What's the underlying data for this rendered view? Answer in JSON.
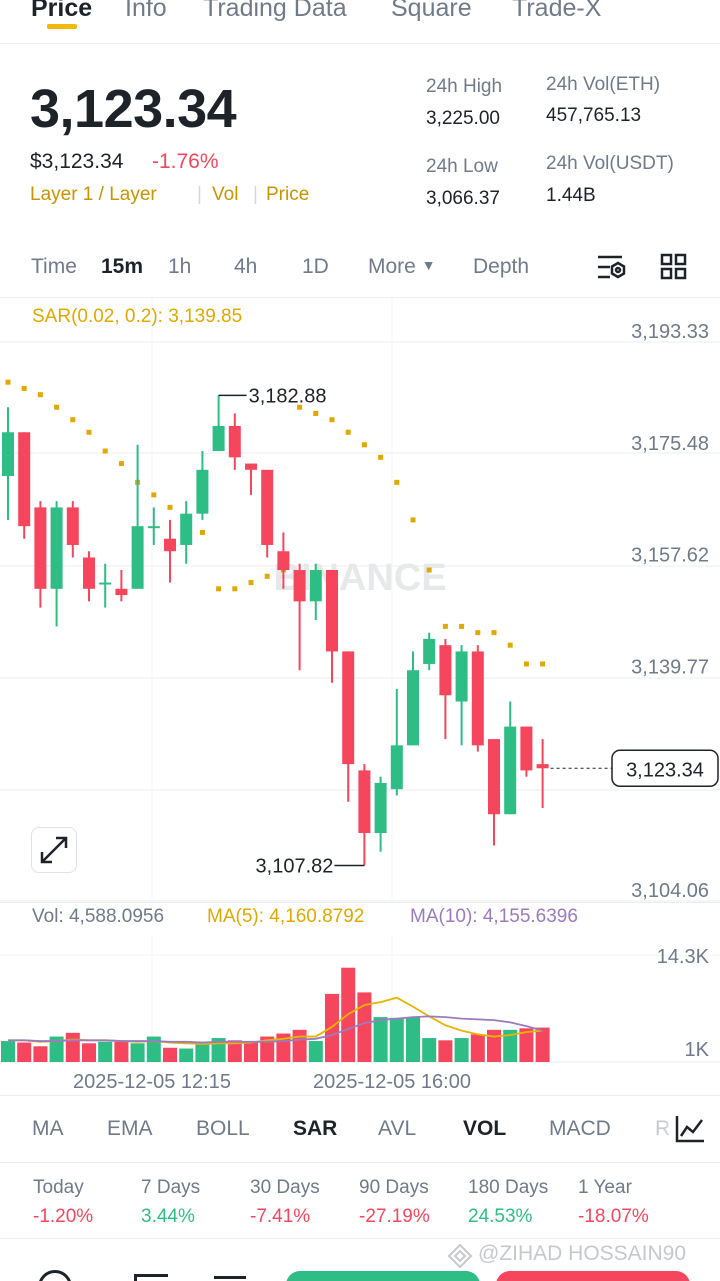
{
  "top_tabs": [
    "Price",
    "Info",
    "Trading Data",
    "Square",
    "Trade-X"
  ],
  "price": {
    "last": "3,123.34",
    "fiat": "$3,123.34",
    "change": "-1.76%"
  },
  "tags": {
    "category": "Layer 1 / Layer",
    "vol": "Vol",
    "price": "Price"
  },
  "stats": {
    "high_label": "24h High",
    "high": "3,225.00",
    "low_label": "24h Low",
    "low": "3,066.37",
    "vol_eth_label": "24h Vol(ETH)",
    "vol_eth": "457,765.13",
    "vol_usdt_label": "24h Vol(USDT)",
    "vol_usdt": "1.44B"
  },
  "intervals": {
    "time": "Time",
    "m15": "15m",
    "h1": "1h",
    "h4": "4h",
    "d1": "1D",
    "more": "More",
    "depth": "Depth"
  },
  "indicator_legend": "SAR(0.02, 0.2): 3,139.85",
  "watermark": "BINANCE",
  "price_axis": [
    "3,193.33",
    "3,175.48",
    "3,157.62",
    "3,139.77",
    "3,104.06"
  ],
  "current_price_tag": "3,123.34",
  "annotations": {
    "high": "3,182.88",
    "low": "3,107.82"
  },
  "volume": {
    "vol": "Vol: 4,588.0956",
    "ma5": "MA(5): 4,160.8792",
    "ma10": "MA(10): 4,155.6396",
    "axis_top": "14.3K",
    "axis_bottom": "1K"
  },
  "time_axis": [
    "2025-12-05 12:15",
    "2025-12-05 16:00"
  ],
  "indicator_tabs": [
    "MA",
    "EMA",
    "BOLL",
    "SAR",
    "AVL",
    "VOL",
    "MACD",
    "R"
  ],
  "performance": [
    {
      "label": "Today",
      "value": "-1.20%"
    },
    {
      "label": "7 Days",
      "value": "3.44%"
    },
    {
      "label": "30 Days",
      "value": "-7.41%"
    },
    {
      "label": "90 Days",
      "value": "-27.19%"
    },
    {
      "label": "180 Days",
      "value": "24.53%"
    },
    {
      "label": "1 Year",
      "value": "-18.07%"
    }
  ],
  "footer_watermark": "@ZIHAD HOSSAIN90",
  "colors": {
    "up": "#2ebd85",
    "down": "#f6465d",
    "accent": "#f0b90b",
    "sar": "#e0a800",
    "ma5": "#e8b400",
    "ma10": "#9b7bbf"
  },
  "chart_data": {
    "type": "candlestick",
    "interval": "15m",
    "ylim": [
      3104.06,
      3193.33
    ],
    "candles": [
      {
        "o": 3170,
        "h": 3181,
        "l": 3163,
        "c": 3177
      },
      {
        "o": 3177,
        "h": 3177,
        "l": 3160,
        "c": 3162
      },
      {
        "o": 3165,
        "h": 3166,
        "l": 3149,
        "c": 3152
      },
      {
        "o": 3152,
        "h": 3166,
        "l": 3146,
        "c": 3165
      },
      {
        "o": 3165,
        "h": 3166,
        "l": 3157,
        "c": 3159
      },
      {
        "o": 3157,
        "h": 3158,
        "l": 3150,
        "c": 3152
      },
      {
        "o": 3153,
        "h": 3156,
        "l": 3149,
        "c": 3153
      },
      {
        "o": 3152,
        "h": 3155,
        "l": 3150,
        "c": 3151
      },
      {
        "o": 3152,
        "h": 3175,
        "l": 3152,
        "c": 3162
      },
      {
        "o": 3162,
        "h": 3165,
        "l": 3159,
        "c": 3162
      },
      {
        "o": 3160,
        "h": 3163,
        "l": 3153,
        "c": 3158
      },
      {
        "o": 3159,
        "h": 3166,
        "l": 3156,
        "c": 3164
      },
      {
        "o": 3164,
        "h": 3174,
        "l": 3163,
        "c": 3171
      },
      {
        "o": 3174,
        "h": 3182.88,
        "l": 3174,
        "c": 3178
      },
      {
        "o": 3178,
        "h": 3180,
        "l": 3171,
        "c": 3173
      },
      {
        "o": 3172,
        "h": 3172,
        "l": 3167,
        "c": 3171
      },
      {
        "o": 3171,
        "h": 3171,
        "l": 3157,
        "c": 3159
      },
      {
        "o": 3158,
        "h": 3161,
        "l": 3152,
        "c": 3155
      },
      {
        "o": 3155,
        "h": 3156,
        "l": 3139,
        "c": 3150
      },
      {
        "o": 3150,
        "h": 3156,
        "l": 3147,
        "c": 3155
      },
      {
        "o": 3155,
        "h": 3155,
        "l": 3137,
        "c": 3142
      },
      {
        "o": 3142,
        "h": 3142,
        "l": 3118,
        "c": 3124
      },
      {
        "o": 3123,
        "h": 3124,
        "l": 3107.82,
        "c": 3113
      },
      {
        "o": 3113,
        "h": 3122,
        "l": 3110,
        "c": 3121
      },
      {
        "o": 3120,
        "h": 3136,
        "l": 3119,
        "c": 3127
      },
      {
        "o": 3127,
        "h": 3142,
        "l": 3127,
        "c": 3139
      },
      {
        "o": 3140,
        "h": 3145,
        "l": 3139,
        "c": 3144
      },
      {
        "o": 3143,
        "h": 3144,
        "l": 3128,
        "c": 3135
      },
      {
        "o": 3134,
        "h": 3143,
        "l": 3127,
        "c": 3142
      },
      {
        "o": 3142,
        "h": 3143,
        "l": 3126,
        "c": 3127
      },
      {
        "o": 3128,
        "h": 3128,
        "l": 3111,
        "c": 3116
      },
      {
        "o": 3116,
        "h": 3134,
        "l": 3116,
        "c": 3130
      },
      {
        "o": 3130,
        "h": 3130,
        "l": 3122,
        "c": 3123
      },
      {
        "o": 3124,
        "h": 3128,
        "l": 3117,
        "c": 3123.34
      }
    ],
    "sar": [
      3185,
      3184,
      3183,
      3181,
      3179,
      3177,
      3174,
      3172,
      3169,
      3167,
      3165,
      3163,
      3161,
      3152,
      3152,
      3153,
      3154,
      3155,
      3181,
      3180,
      3179,
      3177,
      3175,
      3173,
      3169,
      3163,
      3155,
      3146,
      3146,
      3145,
      3145,
      3143,
      3140,
      3140
    ],
    "volume": [
      2.8,
      2.6,
      2.1,
      3.4,
      3.9,
      2.5,
      2.7,
      2.7,
      2.5,
      3.4,
      1.9,
      1.8,
      2.6,
      3.2,
      2.9,
      2.6,
      3.4,
      3.8,
      4.3,
      2.8,
      9.1,
      12.6,
      9.3,
      6.0,
      5.9,
      6.0,
      3.2,
      2.9,
      3.2,
      3.7,
      4.3,
      4.3,
      4.5,
      4.6
    ],
    "ma5": [
      2.9,
      2.9,
      2.7,
      2.8,
      3.0,
      2.9,
      2.9,
      2.8,
      2.7,
      2.8,
      2.6,
      2.5,
      2.4,
      2.5,
      2.5,
      2.6,
      2.9,
      3.1,
      3.4,
      3.4,
      4.7,
      6.4,
      7.6,
      8.0,
      8.6,
      7.4,
      6.1,
      4.9,
      4.2,
      3.7,
      3.4,
      3.6,
      4.0,
      4.2
    ],
    "ma10": [
      2.9,
      2.9,
      2.8,
      2.8,
      2.9,
      2.9,
      2.9,
      2.8,
      2.8,
      2.8,
      2.7,
      2.7,
      2.6,
      2.7,
      2.7,
      2.7,
      2.7,
      2.8,
      3.0,
      3.1,
      3.6,
      4.4,
      5.2,
      5.6,
      5.8,
      6.0,
      6.1,
      6.0,
      5.8,
      5.7,
      5.6,
      5.3,
      4.8,
      4.2
    ],
    "vol_axis": [
      1,
      14.3
    ]
  }
}
